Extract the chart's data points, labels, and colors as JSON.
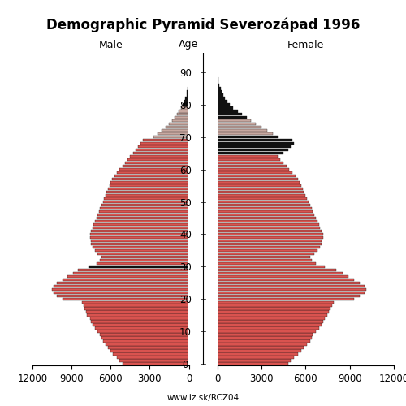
{
  "title": "Demographic Pyramid Severozápad 1996",
  "xlabel_left": "Male",
  "xlabel_right": "Female",
  "age_label": "Age",
  "source": "www.iz.sk/RCZ04",
  "xlim": 12000,
  "xticks": [
    0,
    3000,
    6000,
    9000,
    12000
  ],
  "yticks": [
    0,
    10,
    20,
    30,
    40,
    50,
    60,
    70,
    80,
    90
  ],
  "age_groups": [
    0,
    1,
    2,
    3,
    4,
    5,
    6,
    7,
    8,
    9,
    10,
    11,
    12,
    13,
    14,
    15,
    16,
    17,
    18,
    19,
    20,
    21,
    22,
    23,
    24,
    25,
    26,
    27,
    28,
    29,
    30,
    31,
    32,
    33,
    34,
    35,
    36,
    37,
    38,
    39,
    40,
    41,
    42,
    43,
    44,
    45,
    46,
    47,
    48,
    49,
    50,
    51,
    52,
    53,
    54,
    55,
    56,
    57,
    58,
    59,
    60,
    61,
    62,
    63,
    64,
    65,
    66,
    67,
    68,
    69,
    70,
    71,
    72,
    73,
    74,
    75,
    76,
    77,
    78,
    79,
    80,
    81,
    82,
    83,
    84,
    85,
    86,
    87,
    88,
    89,
    90,
    91,
    92,
    93,
    94,
    95
  ],
  "male": [
    5100,
    5300,
    5500,
    5800,
    6000,
    6200,
    6400,
    6600,
    6700,
    6800,
    7000,
    7200,
    7400,
    7500,
    7600,
    7800,
    7900,
    8000,
    8100,
    8200,
    9700,
    10100,
    10400,
    10500,
    10400,
    10100,
    9700,
    9300,
    8900,
    8500,
    7700,
    7100,
    6800,
    6700,
    7000,
    7200,
    7400,
    7500,
    7500,
    7600,
    7600,
    7500,
    7400,
    7300,
    7200,
    7100,
    7000,
    6900,
    6800,
    6700,
    6600,
    6500,
    6400,
    6300,
    6200,
    6100,
    6000,
    5900,
    5700,
    5500,
    5300,
    5100,
    4900,
    4700,
    4500,
    4300,
    4100,
    3900,
    3700,
    3500,
    2700,
    2400,
    2100,
    1800,
    1550,
    1300,
    1100,
    900,
    750,
    600,
    450,
    350,
    250,
    180,
    130,
    80,
    60,
    40,
    25,
    15,
    8,
    4,
    2,
    1,
    1,
    1
  ],
  "female": [
    4800,
    5000,
    5200,
    5500,
    5700,
    5900,
    6100,
    6300,
    6400,
    6500,
    6700,
    6900,
    7100,
    7200,
    7300,
    7500,
    7600,
    7700,
    7800,
    7900,
    9300,
    9700,
    10000,
    10100,
    10000,
    9700,
    9300,
    8900,
    8500,
    8100,
    7300,
    6700,
    6400,
    6300,
    6600,
    6800,
    7000,
    7100,
    7100,
    7200,
    7200,
    7100,
    7000,
    6900,
    6800,
    6700,
    6600,
    6500,
    6400,
    6300,
    6200,
    6100,
    6000,
    5900,
    5800,
    5700,
    5600,
    5500,
    5300,
    5100,
    4900,
    4700,
    4500,
    4300,
    4100,
    4500,
    4800,
    5000,
    5200,
    5100,
    4100,
    3800,
    3400,
    3000,
    2600,
    2300,
    2000,
    1700,
    1400,
    1100,
    850,
    700,
    550,
    420,
    320,
    230,
    160,
    110,
    70,
    45,
    25,
    13,
    7,
    3,
    2,
    1
  ],
  "male_colors": [
    "#d9534f",
    "#d9534f",
    "#d9534f",
    "#d9534f",
    "#d9534f",
    "#d9534f",
    "#d9534f",
    "#d9534f",
    "#d9534f",
    "#d9534f",
    "#d9534f",
    "#d9534f",
    "#d9534f",
    "#d9534f",
    "#d9534f",
    "#d9534f",
    "#d9534f",
    "#d9534f",
    "#d9534f",
    "#d9534f",
    "#d9534f",
    "#d9534f",
    "#d9534f",
    "#d9534f",
    "#d9534f",
    "#d9534f",
    "#d9534f",
    "#d9534f",
    "#d9534f",
    "#d9534f",
    "#111111",
    "#d9534f",
    "#d9534f",
    "#d9534f",
    "#d9534f",
    "#d9534f",
    "#d9534f",
    "#d9534f",
    "#d9534f",
    "#d9534f",
    "#d9534f",
    "#d9534f",
    "#d9534f",
    "#d9534f",
    "#d9534f",
    "#d9534f",
    "#d9534f",
    "#d9534f",
    "#d9534f",
    "#d9534f",
    "#d9534f",
    "#d9534f",
    "#d9534f",
    "#d9534f",
    "#d9534f",
    "#d9534f",
    "#d9534f",
    "#d9534f",
    "#d9534f",
    "#d9534f",
    "#d9534f",
    "#d9534f",
    "#d9534f",
    "#d9534f",
    "#d9534f",
    "#d9534f",
    "#d9534f",
    "#d9534f",
    "#d9534f",
    "#d9534f",
    "#c8a8a0",
    "#c8a8a0",
    "#c8a8a0",
    "#c8a8a0",
    "#c8a8a0",
    "#c8a8a0",
    "#c8a8a0",
    "#c8a8a0",
    "#c8a8a0",
    "#c8a8a0",
    "#111111",
    "#111111",
    "#111111",
    "#111111",
    "#111111",
    "#111111",
    "#111111",
    "#111111",
    "#111111",
    "#111111",
    "#111111",
    "#111111",
    "#111111",
    "#111111",
    "#111111",
    "#111111"
  ],
  "female_colors": [
    "#d9534f",
    "#d9534f",
    "#d9534f",
    "#d9534f",
    "#d9534f",
    "#d9534f",
    "#d9534f",
    "#d9534f",
    "#d9534f",
    "#d9534f",
    "#d9534f",
    "#d9534f",
    "#d9534f",
    "#d9534f",
    "#d9534f",
    "#d9534f",
    "#d9534f",
    "#d9534f",
    "#d9534f",
    "#d9534f",
    "#d9534f",
    "#d9534f",
    "#d9534f",
    "#d9534f",
    "#d9534f",
    "#d9534f",
    "#d9534f",
    "#d9534f",
    "#d9534f",
    "#d9534f",
    "#d9534f",
    "#d9534f",
    "#d9534f",
    "#d9534f",
    "#d9534f",
    "#d9534f",
    "#d9534f",
    "#d9534f",
    "#d9534f",
    "#d9534f",
    "#d9534f",
    "#d9534f",
    "#d9534f",
    "#d9534f",
    "#d9534f",
    "#d9534f",
    "#d9534f",
    "#d9534f",
    "#d9534f",
    "#d9534f",
    "#d9534f",
    "#d9534f",
    "#d9534f",
    "#d9534f",
    "#d9534f",
    "#d9534f",
    "#d9534f",
    "#d9534f",
    "#d9534f",
    "#d9534f",
    "#d9534f",
    "#d9534f",
    "#d9534f",
    "#d9534f",
    "#d9534f",
    "#111111",
    "#111111",
    "#111111",
    "#111111",
    "#111111",
    "#111111",
    "#c8a8a0",
    "#c8a8a0",
    "#c8a8a0",
    "#c8a8a0",
    "#c8a8a0",
    "#111111",
    "#111111",
    "#111111",
    "#111111",
    "#111111",
    "#111111",
    "#111111",
    "#111111",
    "#111111",
    "#111111",
    "#111111",
    "#111111",
    "#111111",
    "#111111",
    "#111111",
    "#111111",
    "#111111",
    "#111111",
    "#111111",
    "#111111",
    "#111111"
  ],
  "bar_edge_color": "#111111",
  "bar_linewidth": 0.25,
  "background_color": "#ffffff",
  "title_fontsize": 12,
  "label_fontsize": 9,
  "tick_fontsize": 8.5,
  "ylim_bottom": -0.5,
  "ylim_top": 96
}
